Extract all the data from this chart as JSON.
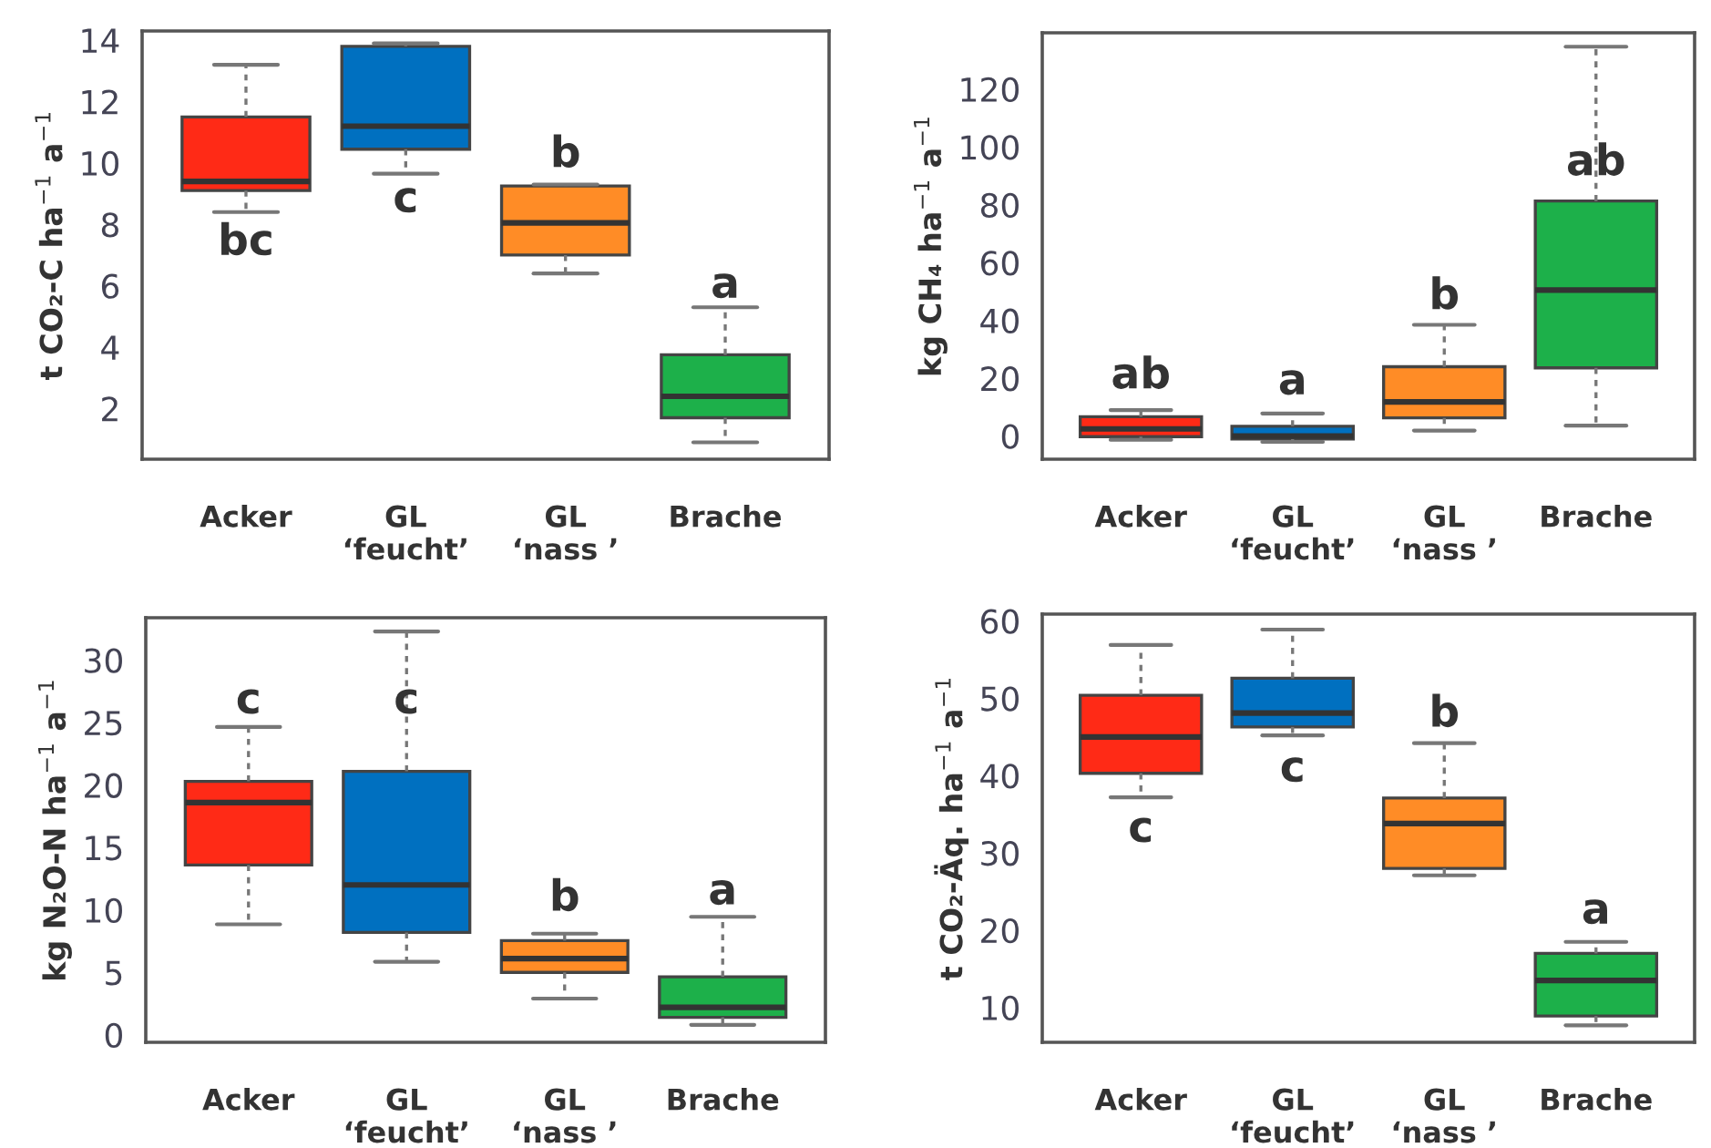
{
  "chart_data": [
    {
      "type": "box",
      "ylabel": "t CO₂-C ha$^{−1}$ a$^{−1}$",
      "categories": [
        "Acker",
        "GL\n‘feucht’",
        "GL\n‘nass ’",
        "Brache"
      ],
      "colors": [
        "#ff2a16",
        "#0070c0",
        "#ff8c26",
        "#1db04a"
      ],
      "ylim": [
        0.35,
        14.3
      ],
      "yticks": [
        2,
        4,
        6,
        8,
        10,
        12,
        14
      ],
      "boxes": [
        {
          "low": 8.4,
          "q1": 9.1,
          "median": 9.4,
          "q3": 11.5,
          "high": 13.2
        },
        {
          "low": 9.65,
          "q1": 10.45,
          "median": 11.2,
          "q3": 13.8,
          "high": 13.9
        },
        {
          "low": 6.4,
          "q1": 7.0,
          "median": 8.05,
          "q3": 9.25,
          "high": 9.3
        },
        {
          "low": 0.9,
          "q1": 1.7,
          "median": 2.4,
          "q3": 3.75,
          "high": 5.3
        }
      ],
      "annotations": [
        "bc",
        "c",
        "b",
        "a"
      ]
    },
    {
      "type": "box",
      "ylabel": "kg CH₄ ha$^{−1}$ a$^{−1}$",
      "categories": [
        "Acker",
        "GL\n‘feucht’",
        "GL\n‘nass ’",
        "Brache"
      ],
      "colors": [
        "#ff2a16",
        "#0070c0",
        "#ff8c26",
        "#1db04a"
      ],
      "ylim": [
        -8,
        139.5
      ],
      "yticks": [
        0,
        20,
        40,
        60,
        80,
        100,
        120
      ],
      "boxes": [
        {
          "low": -1.3,
          "q1": -0.2,
          "median": 2.5,
          "q3": 6.7,
          "high": 9
        },
        {
          "low": -2,
          "q1": -1,
          "median": 0,
          "q3": 3.4,
          "high": 7.8
        },
        {
          "low": 1.9,
          "q1": 6.3,
          "median": 11.8,
          "q3": 24,
          "high": 38.5
        },
        {
          "low": 3.6,
          "q1": 23.6,
          "median": 50.5,
          "q3": 81.3,
          "high": 134.7
        }
      ],
      "annotations": [
        "ab",
        "a",
        "b",
        "ab"
      ]
    },
    {
      "type": "box",
      "ylabel": "kg N₂O-N ha$^{−1}$ a$^{−1}$",
      "categories": [
        "Acker",
        "GL\n‘feucht’",
        "GL\n‘nass ’",
        "Brache"
      ],
      "colors": [
        "#ff2a16",
        "#0070c0",
        "#ff8c26",
        "#1db04a"
      ],
      "ylim": [
        -0.6,
        33.4
      ],
      "yticks": [
        0,
        5,
        10,
        15,
        20,
        25,
        30
      ],
      "boxes": [
        {
          "low": 8.85,
          "q1": 13.6,
          "median": 18.6,
          "q3": 20.3,
          "high": 24.65
        },
        {
          "low": 5.85,
          "q1": 8.2,
          "median": 12.0,
          "q3": 21.1,
          "high": 32.3
        },
        {
          "low": 2.9,
          "q1": 5.0,
          "median": 6.1,
          "q3": 7.55,
          "high": 8.1
        },
        {
          "low": 0.8,
          "q1": 1.4,
          "median": 2.2,
          "q3": 4.65,
          "high": 9.45
        }
      ],
      "annotations": [
        "c",
        "c",
        "b",
        "a"
      ]
    },
    {
      "type": "box",
      "ylabel": "t CO₂-Äq. ha$^{−1}$ a$^{−1}$",
      "categories": [
        "Acker",
        "GL\n‘feucht’",
        "GL\n‘nass ’",
        "Brache"
      ],
      "colors": [
        "#ff2a16",
        "#0070c0",
        "#ff8c26",
        "#1db04a"
      ],
      "ylim": [
        5.5,
        60.9
      ],
      "yticks": [
        10,
        20,
        30,
        40,
        50,
        60
      ],
      "boxes": [
        {
          "low": 37.2,
          "q1": 40.3,
          "median": 45.0,
          "q3": 50.4,
          "high": 56.9
        },
        {
          "low": 45.2,
          "q1": 46.3,
          "median": 48.1,
          "q3": 52.6,
          "high": 58.9
        },
        {
          "low": 27.1,
          "q1": 28.0,
          "median": 33.8,
          "q3": 37.1,
          "high": 44.2
        },
        {
          "low": 7.7,
          "q1": 8.9,
          "median": 13.5,
          "q3": 17.0,
          "high": 18.5
        }
      ],
      "annotations": [
        "c",
        "c",
        "b",
        "a"
      ]
    }
  ]
}
